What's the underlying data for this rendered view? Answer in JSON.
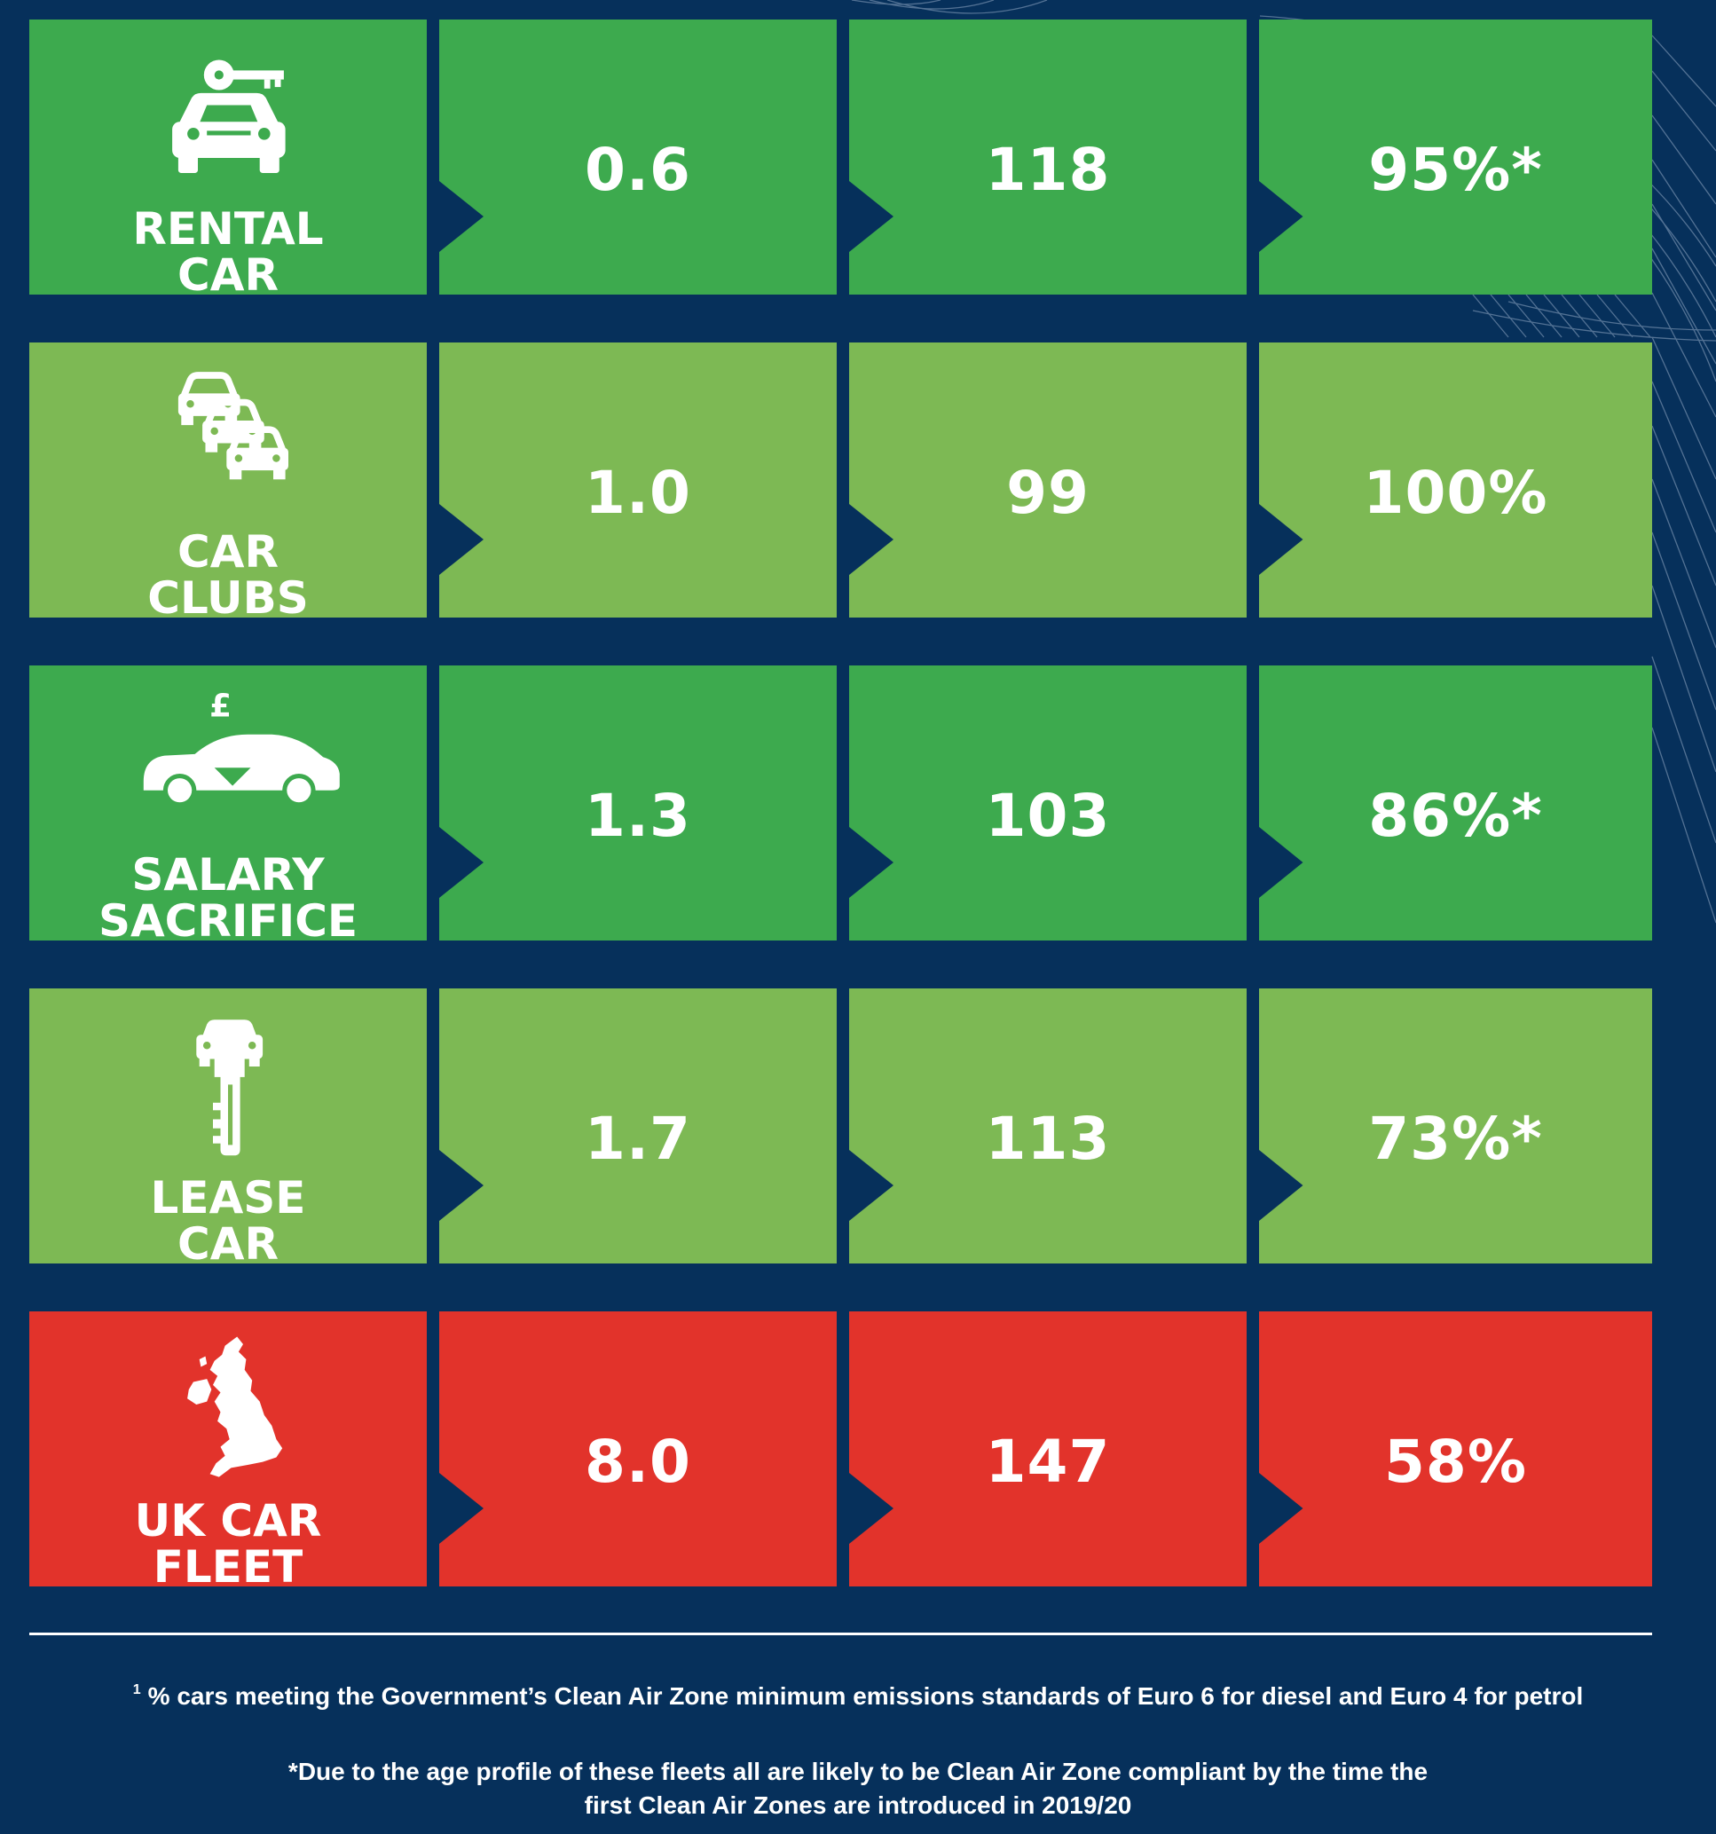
{
  "colors": {
    "background": "#06305b",
    "green_dark": "#3daa4e",
    "green_light": "#7db954",
    "red": "#e2332b",
    "text": "#ffffff"
  },
  "chart_data": {
    "type": "table",
    "columns": [
      "",
      "",
      "",
      ""
    ],
    "rows": [
      {
        "label_lines": [
          "RENTAL",
          "CAR"
        ],
        "icon": "car-key-icon",
        "color": "#3daa4e",
        "values": [
          "0.6",
          "118",
          "95%*"
        ]
      },
      {
        "label_lines": [
          "CAR",
          "CLUBS"
        ],
        "icon": "stacked-cars-icon",
        "color": "#7db954",
        "values": [
          "1.0",
          "99",
          "100%"
        ]
      },
      {
        "label_lines": [
          "SALARY",
          "SACRIFICE"
        ],
        "icon": "pound-car-icon",
        "color": "#3daa4e",
        "values": [
          "1.3",
          "103",
          "86%*"
        ]
      },
      {
        "label_lines": [
          "LEASE",
          "CAR"
        ],
        "icon": "car-on-key-icon",
        "color": "#7db954",
        "values": [
          "1.7",
          "113",
          "73%*"
        ]
      },
      {
        "label_lines": [
          "UK CAR",
          "FLEET"
        ],
        "icon": "uk-map-icon",
        "color": "#e2332b",
        "values": [
          "8.0",
          "147",
          "58%"
        ]
      }
    ]
  },
  "footnotes": {
    "note1_marker": "1",
    "note1": "% cars meeting the Government’s Clean Air Zone minimum emissions standards of Euro 6 for diesel and Euro 4 for petrol",
    "note2_line1": "*Due to the age profile of these fleets all are likely to be Clean Air Zone compliant by the time the",
    "note2_line2": "first Clean Air Zones are introduced in 2019/20"
  }
}
